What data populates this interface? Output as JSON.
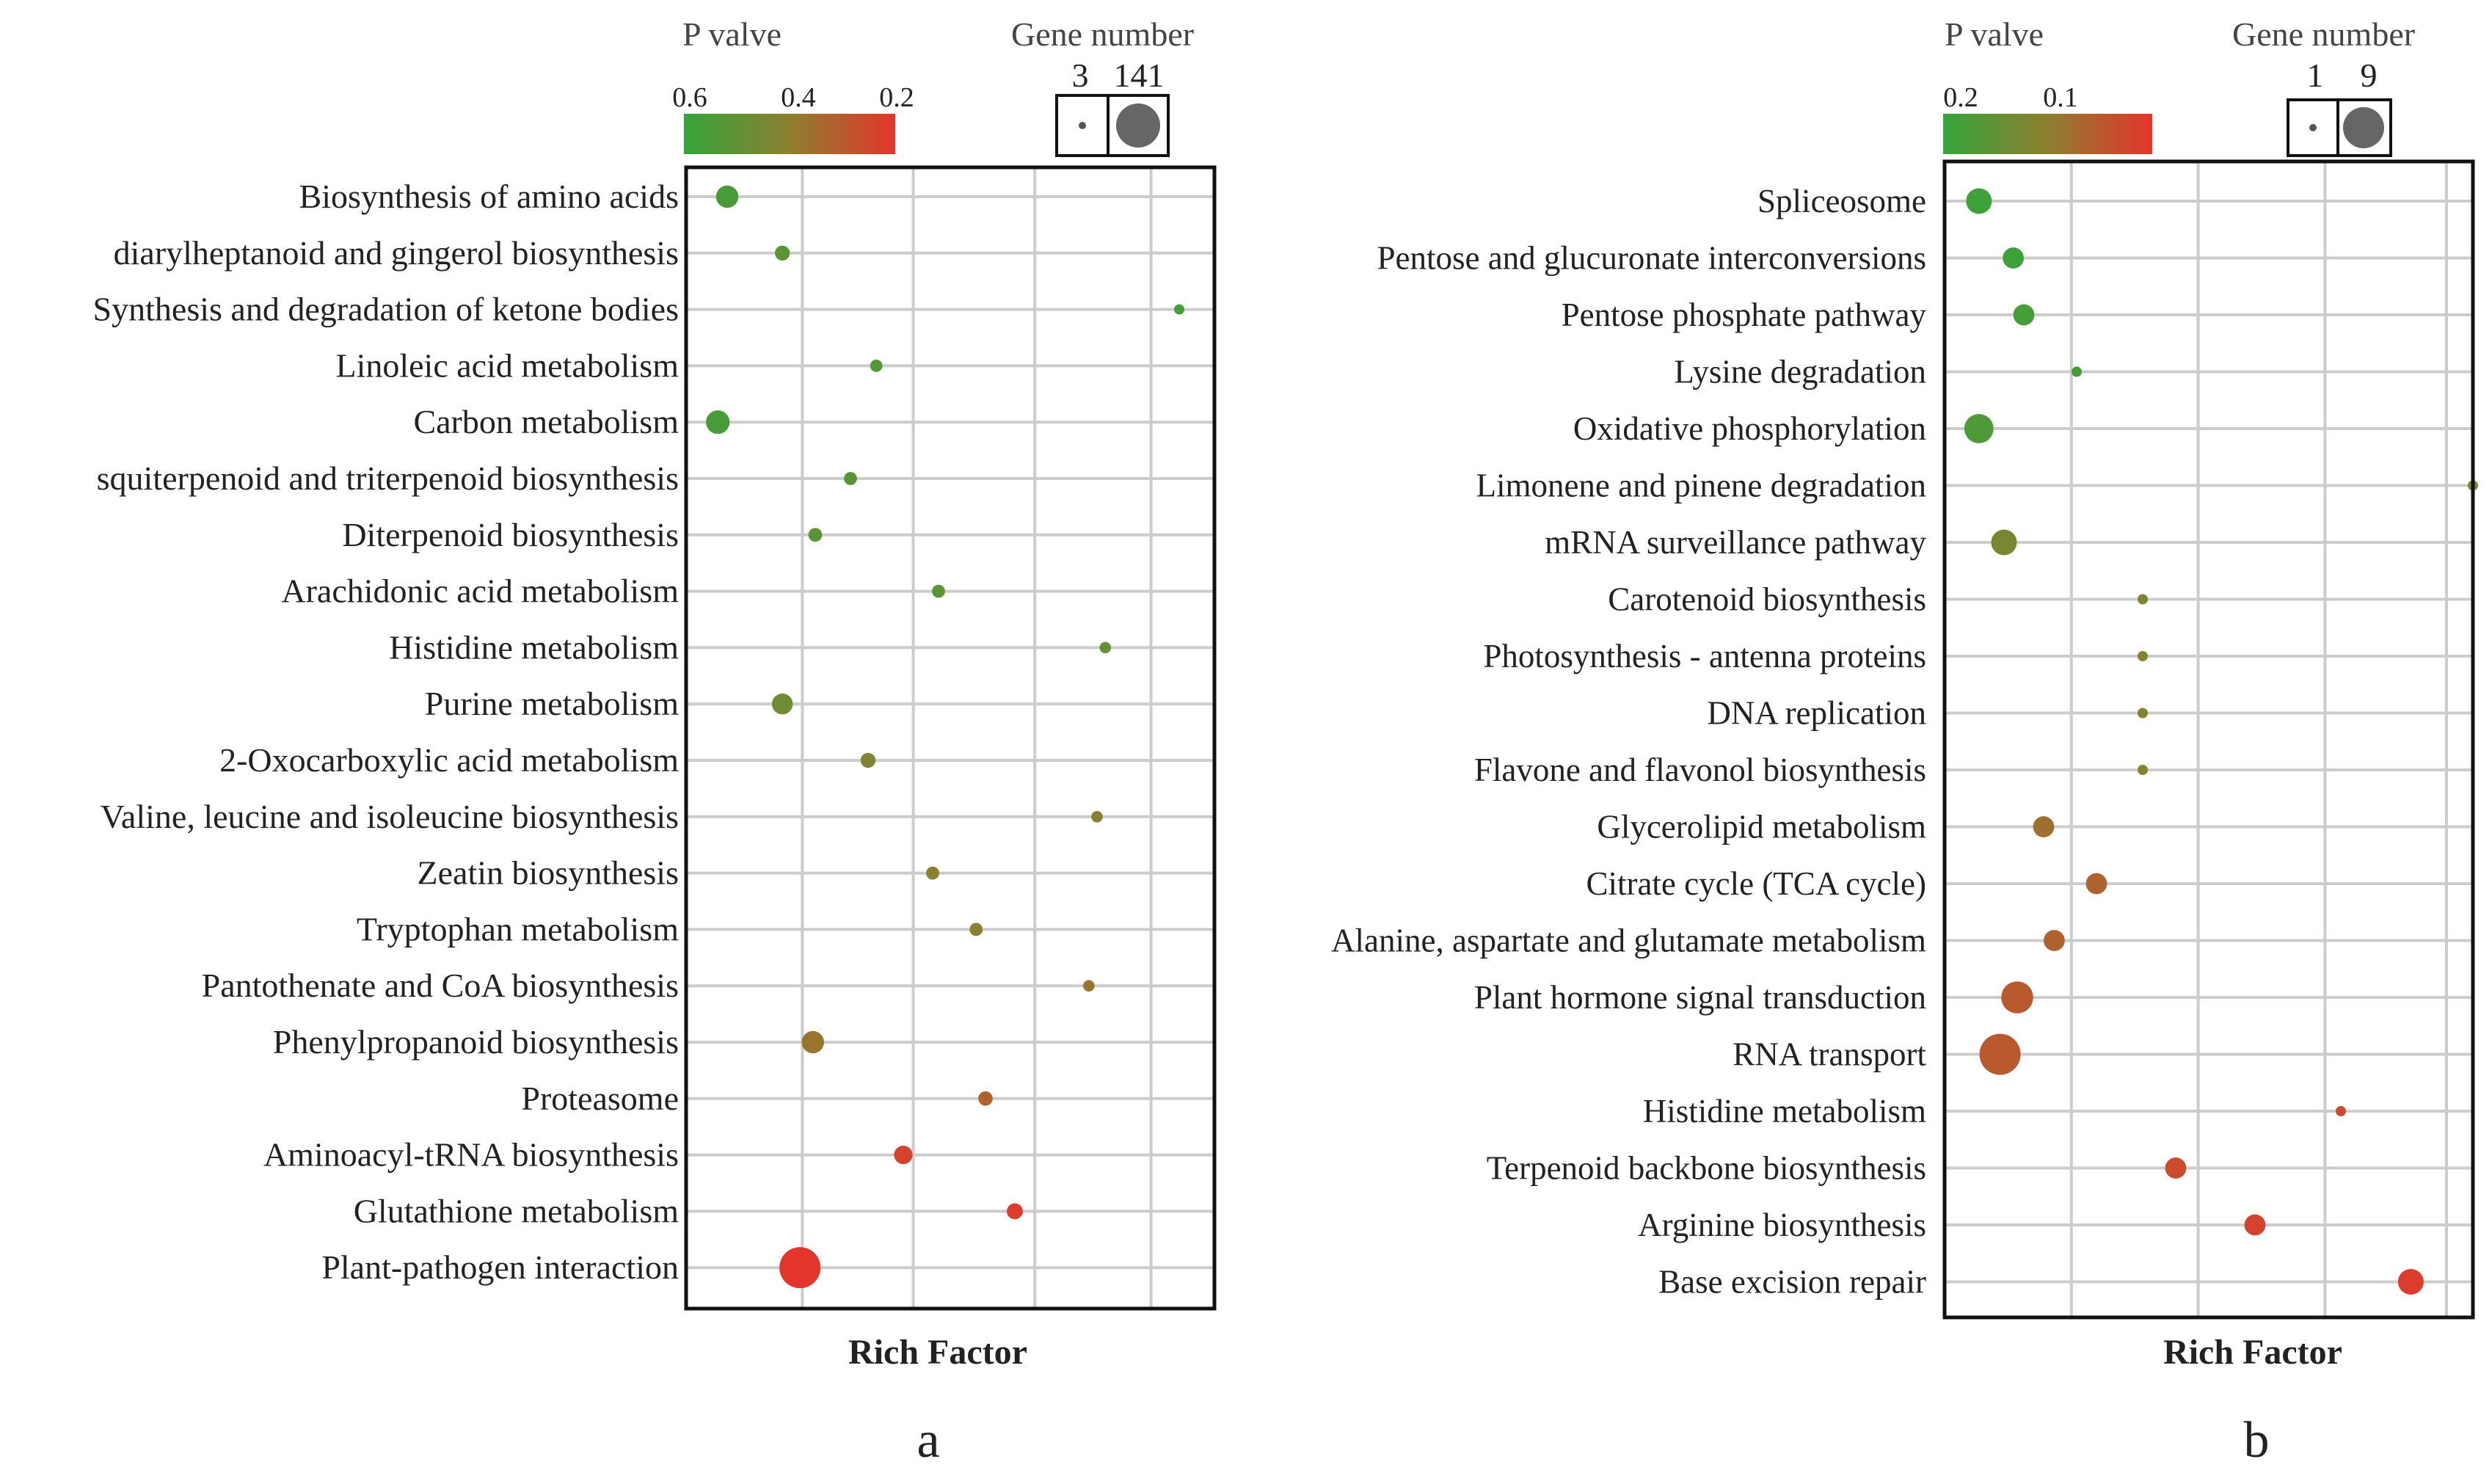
{
  "chart_data": [
    {
      "type": "scatter",
      "panel_label": "a",
      "xlabel": "Rich Factor",
      "xlim": [
        0,
        0.45
      ],
      "legend": {
        "pvalue_title": "P valve",
        "pvalue_ticks": [
          "0.6",
          "0.4",
          "0.2"
        ],
        "pvalue_range": [
          0.65,
          0.18
        ],
        "size_title": "Gene number",
        "size_ticks": [
          "3",
          "141"
        ],
        "size_range": [
          3,
          141
        ]
      },
      "categories": [
        "Biosynthesis of amino acids",
        "diarylheptanoid and gingerol biosynthesis",
        "Synthesis and degradation of ketone bodies",
        "Linoleic acid metabolism",
        "Carbon metabolism",
        "squiterpenoid and triterpenoid biosynthesis",
        "Diterpenoid biosynthesis",
        "Arachidonic acid metabolism",
        "Histidine metabolism",
        "Purine metabolism",
        "2-Oxocarboxylic acid metabolism",
        "Valine, leucine and isoleucine biosynthesis",
        "Zeatin biosynthesis",
        "Tryptophan metabolism",
        "Pantothenate and CoA biosynthesis",
        "Phenylpropanoid biosynthesis",
        "Proteasome",
        "Aminoacyl-tRNA biosynthesis",
        "Glutathione metabolism",
        "Plant-pathogen interaction"
      ],
      "rich_factor": [
        0.035,
        0.082,
        0.42,
        0.162,
        0.027,
        0.14,
        0.11,
        0.215,
        0.357,
        0.082,
        0.155,
        0.35,
        0.21,
        0.247,
        0.343,
        0.108,
        0.255,
        0.185,
        0.28,
        0.097
      ],
      "p_value": [
        0.6,
        0.55,
        0.6,
        0.58,
        0.6,
        0.55,
        0.55,
        0.55,
        0.52,
        0.5,
        0.45,
        0.42,
        0.42,
        0.42,
        0.38,
        0.38,
        0.32,
        0.22,
        0.2,
        0.18
      ],
      "gene_number": [
        30,
        10,
        4,
        6,
        35,
        7,
        8,
        7,
        5,
        25,
        10,
        5,
        7,
        7,
        5,
        30,
        9,
        18,
        12,
        141
      ]
    },
    {
      "type": "scatter",
      "panel_label": "b",
      "xlabel": "Rich Factor",
      "xlim": [
        0,
        0.4
      ],
      "legend": {
        "pvalue_title": "P valve",
        "pvalue_ticks": [
          "0.2",
          "0.1"
        ],
        "pvalue_range": [
          0.2,
          0.0
        ],
        "size_title": "Gene number",
        "size_ticks": [
          "1",
          "9"
        ],
        "size_range": [
          1,
          9
        ]
      },
      "categories": [
        "Spliceosome",
        "Pentose and glucuronate interconversions",
        "Pentose phosphate pathway",
        "Lysine degradation",
        "Oxidative phosphorylation",
        "Limonene and pinene degradation",
        "mRNA surveillance pathway",
        "Carotenoid biosynthesis",
        "Photosynthesis - antenna proteins",
        "DNA replication",
        "Flavone and flavonol biosynthesis",
        "Glycerolipid metabolism",
        "Citrate cycle (TCA cycle)",
        "Alanine, aspartate and glutamate metabolism",
        "Plant hormone signal transduction",
        "RNA transport",
        "Histidine metabolism",
        "Terpenoid backbone biosynthesis",
        "Arginine biosynthesis",
        "Base excision repair"
      ],
      "rich_factor": [
        0.026,
        0.052,
        0.06,
        0.1,
        0.026,
        0.4,
        0.045,
        0.15,
        0.15,
        0.15,
        0.15,
        0.075,
        0.115,
        0.083,
        0.055,
        0.042,
        0.3,
        0.175,
        0.235,
        0.353
      ],
      "p_value": [
        0.19,
        0.19,
        0.18,
        0.18,
        0.17,
        0.13,
        0.12,
        0.11,
        0.11,
        0.11,
        0.11,
        0.08,
        0.06,
        0.06,
        0.05,
        0.05,
        0.03,
        0.03,
        0.02,
        0.01
      ],
      "gene_number": [
        3,
        2,
        2,
        1,
        4,
        1,
        3,
        1,
        1,
        1,
        1,
        2,
        2,
        2,
        5,
        9,
        1,
        2,
        2,
        3
      ]
    }
  ]
}
